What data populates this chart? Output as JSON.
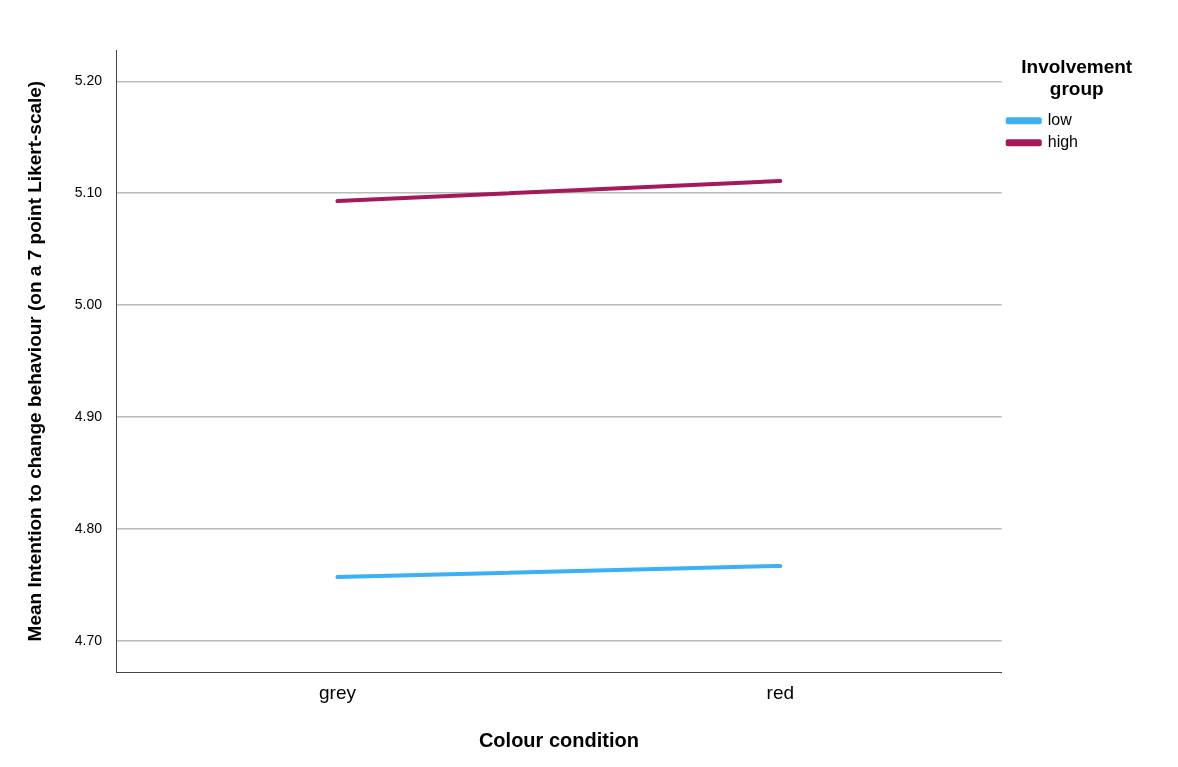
{
  "chart_data": {
    "type": "line",
    "xlabel": "Colour condition",
    "ylabel": "Mean Intention to change behaviour (on a 7 point Likert-scale)",
    "legend_title": "Involvement group",
    "categories": [
      "grey",
      "red"
    ],
    "series": [
      {
        "name": "low",
        "color": "#3bb0f7",
        "values": [
          4.757,
          4.767
        ]
      },
      {
        "name": "high",
        "color": "#a3195b",
        "values": [
          5.093,
          5.111
        ]
      }
    ],
    "ylim": [
      4.672,
      5.228
    ],
    "yticks": [
      {
        "value": 4.7,
        "label": "4.70"
      },
      {
        "value": 4.8,
        "label": "4.80"
      },
      {
        "value": 4.9,
        "label": "4.90"
      },
      {
        "value": 5.0,
        "label": "5.00"
      },
      {
        "value": 5.1,
        "label": "5.10"
      },
      {
        "value": 5.2,
        "label": "5.20"
      }
    ],
    "grid": "y",
    "legend": "top right",
    "marker": "none",
    "line_style": "solid"
  }
}
